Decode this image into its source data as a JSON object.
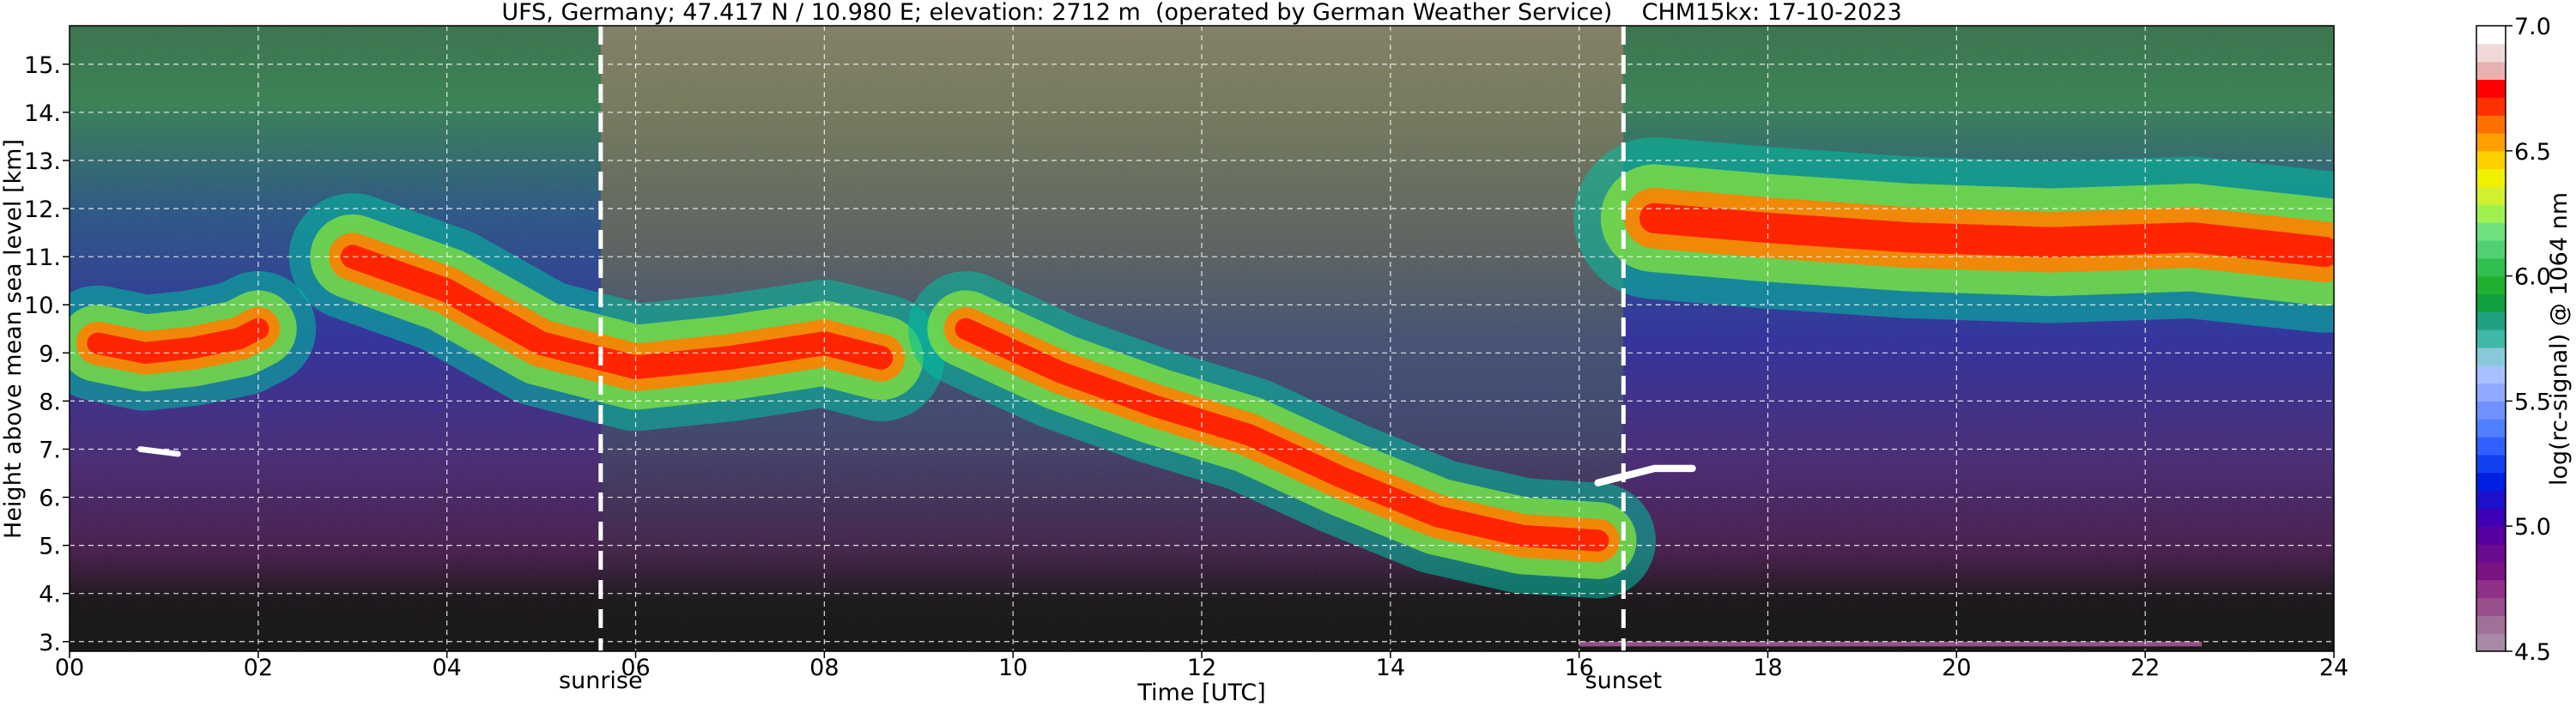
{
  "chart_data": {
    "type": "heatmap",
    "title": "UFS, Germany; 47.417 N / 10.980 E; elevation: 2712 m  (operated by German Weather Service)    CHM15kx: 17-10-2023",
    "xlabel": "Time [UTC]",
    "ylabel": "Height above mean sea level [km]",
    "xlim": [
      0,
      24
    ],
    "ylim": [
      2.8,
      15.8
    ],
    "x_ticks": [
      0,
      2,
      4,
      6,
      8,
      10,
      12,
      14,
      16,
      18,
      20,
      22,
      24
    ],
    "x_tick_labels": [
      "00",
      "02",
      "04",
      "06",
      "08",
      "10",
      "12",
      "14",
      "16",
      "18",
      "20",
      "22",
      "24"
    ],
    "y_ticks": [
      3,
      4,
      5,
      6,
      7,
      8,
      9,
      10,
      11,
      12,
      13,
      14,
      15
    ],
    "y_tick_labels": [
      "3.",
      "4.",
      "5.",
      "6.",
      "7.",
      "8.",
      "9.",
      "10.",
      "11.",
      "12.",
      "13.",
      "14.",
      "15."
    ],
    "grid": true,
    "markers": [
      {
        "label": "sunrise",
        "x": 5.63
      },
      {
        "label": "sunset",
        "x": 16.47
      }
    ],
    "colorbar": {
      "label": "log(rc-signal) @ 1064 nm",
      "range": [
        4.5,
        7.0
      ],
      "ticks": [
        4.5,
        5.0,
        5.5,
        6.0,
        6.5,
        7.0
      ],
      "tick_labels": [
        "4.5",
        "5.0",
        "5.5",
        "6.0",
        "6.5",
        "7.0"
      ],
      "colors": [
        "#a98aa6",
        "#a07099",
        "#9a4f8d",
        "#8f2f87",
        "#7a1282",
        "#6a0a90",
        "#5500a0",
        "#3d00b4",
        "#1e10cc",
        "#0020e0",
        "#1040f0",
        "#3060ff",
        "#5080ff",
        "#7090ff",
        "#90a8ff",
        "#a8c0ff",
        "#88c8d8",
        "#40b8a8",
        "#20a080",
        "#10a040",
        "#20b030",
        "#30c050",
        "#50d070",
        "#70e080",
        "#a0f050",
        "#d0f030",
        "#f0f000",
        "#ffd000",
        "#ffa000",
        "#ff7000",
        "#ff3000",
        "#ff0000",
        "#e8b0b0",
        "#f0d8d8",
        "#ffffff"
      ]
    },
    "features": [
      {
        "name": "cirrus",
        "points": [
          [
            0.3,
            9.2
          ],
          [
            0.8,
            9.0
          ],
          [
            1.3,
            9.1
          ],
          [
            1.8,
            9.3
          ],
          [
            2.0,
            9.5
          ]
        ],
        "thick": 1.0
      },
      {
        "name": "cirrus",
        "points": [
          [
            3.0,
            11.0
          ],
          [
            4.0,
            10.3
          ],
          [
            5.0,
            9.2
          ],
          [
            6.0,
            8.7
          ],
          [
            7.0,
            8.9
          ],
          [
            8.0,
            9.2
          ],
          [
            8.6,
            8.9
          ]
        ],
        "thick": 1.1
      },
      {
        "name": "cirrus",
        "points": [
          [
            9.5,
            9.5
          ],
          [
            10.5,
            8.6
          ],
          [
            11.5,
            7.9
          ],
          [
            12.5,
            7.3
          ],
          [
            13.5,
            6.4
          ],
          [
            14.5,
            5.6
          ],
          [
            15.4,
            5.2
          ],
          [
            16.2,
            5.1
          ]
        ],
        "thick": 1.0
      },
      {
        "name": "cirrus",
        "points": [
          [
            16.8,
            11.8
          ],
          [
            18.0,
            11.6
          ],
          [
            19.5,
            11.4
          ],
          [
            21.0,
            11.3
          ],
          [
            22.5,
            11.4
          ],
          [
            23.9,
            11.1
          ]
        ],
        "thick": 1.4
      },
      {
        "name": "cloud",
        "points": [
          [
            0.75,
            7.0
          ],
          [
            1.15,
            6.9
          ]
        ],
        "thick": 0.12
      },
      {
        "name": "cloud",
        "points": [
          [
            16.2,
            6.3
          ],
          [
            16.8,
            6.6
          ],
          [
            17.2,
            6.6
          ]
        ],
        "thick": 0.15
      }
    ]
  }
}
